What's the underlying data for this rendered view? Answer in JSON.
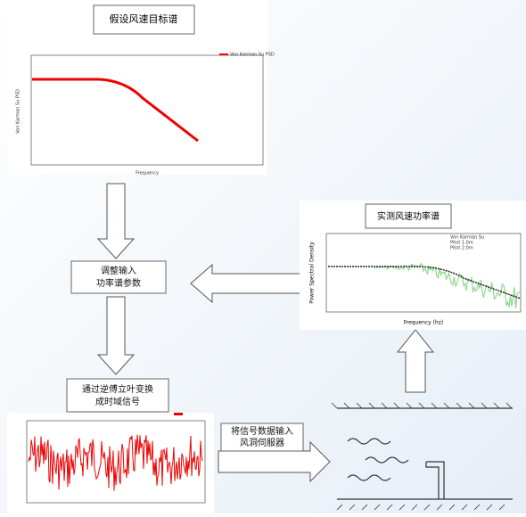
{
  "target_chart": {
    "title": "假设风速目标谱",
    "legend": "Von Karman Su PSD",
    "x_label": "Frequency",
    "y_label": "Von Karman Su PSD"
  },
  "measured_chart": {
    "title": "实测风速功率谱",
    "x_label": "Frequency (hz)",
    "y_label": "Power Spectral Density",
    "legend": [
      "Von Karman Su",
      "Pitot 1.0m",
      "Pitot 2.0m"
    ]
  },
  "steps": [
    {
      "lines": [
        "调整输入",
        "功率谱参数"
      ]
    },
    {
      "lines": [
        "通过逆傅立叶变换",
        "成时域信号"
      ]
    },
    {
      "lines": [
        "将信号数据输入",
        "风洞伺服器"
      ]
    }
  ]
}
